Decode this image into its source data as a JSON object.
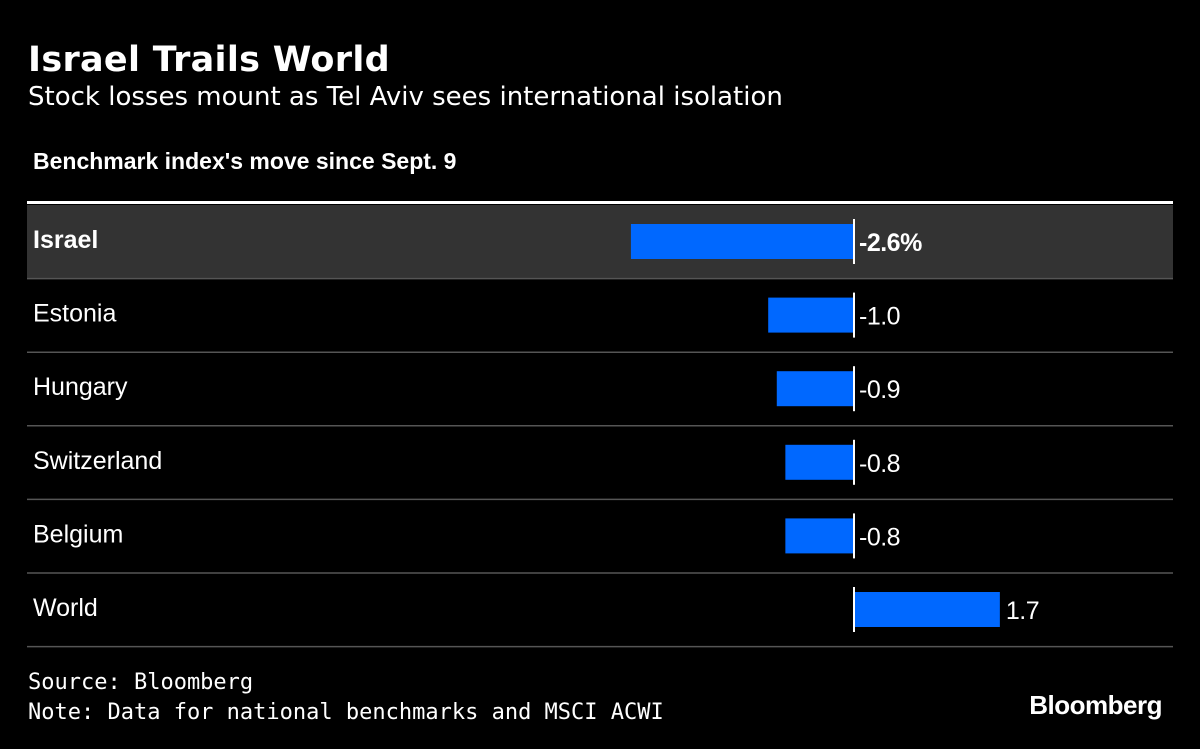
{
  "title": "Israel Trails World",
  "subtitle": "Stock losses mount as Tel Aviv sees international isolation",
  "source": "Source: Bloomberg",
  "note": "Note: Data for national benchmarks and MSCI ACWI",
  "logo": "Bloomberg",
  "colors": {
    "bar": "#0068ff",
    "highlight_row": "#333333",
    "background": "#000000"
  },
  "chart_data": {
    "type": "bar",
    "orientation": "horizontal",
    "title": "Benchmark index's move since Sept. 9",
    "categories": [
      "Israel",
      "Estonia",
      "Hungary",
      "Switzerland",
      "Belgium",
      "World"
    ],
    "values": [
      -2.6,
      -1.0,
      -0.9,
      -0.8,
      -0.8,
      1.7
    ],
    "value_labels": [
      "-2.6%",
      "-1.0",
      "-0.9",
      "-0.8",
      "-0.8",
      "1.7"
    ],
    "highlighted": "Israel",
    "unit": "%"
  }
}
